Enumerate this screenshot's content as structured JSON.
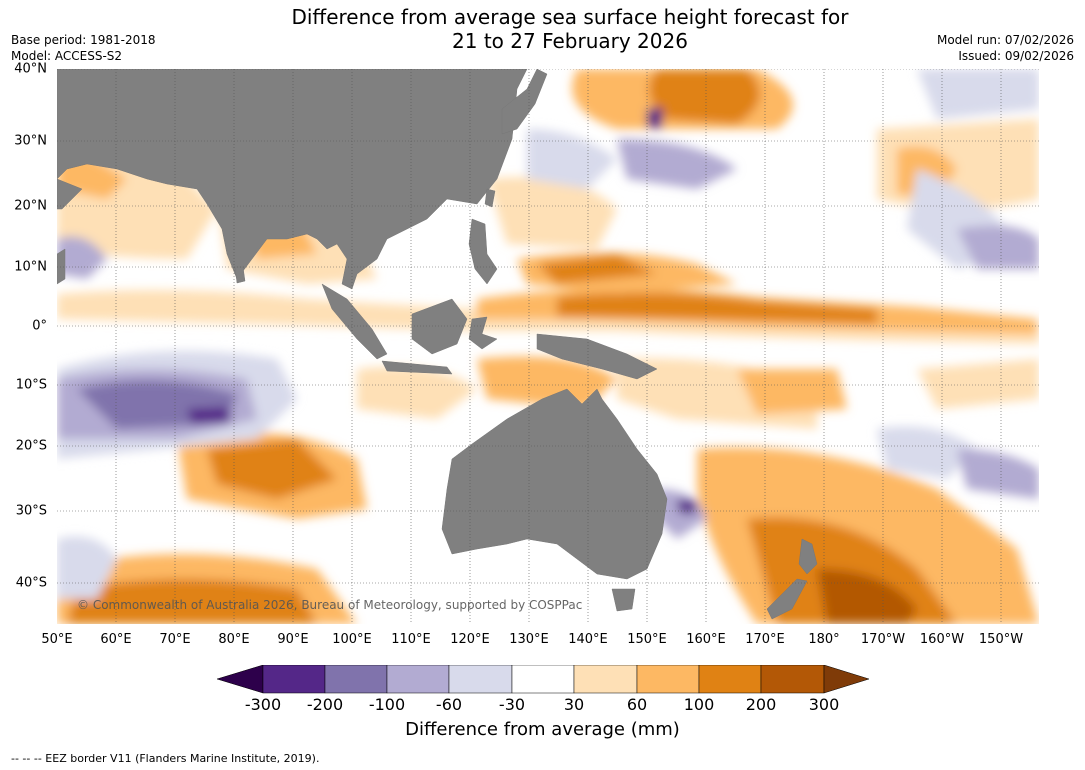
{
  "title": {
    "line1": "Difference from average sea surface height forecast for",
    "line2": "21 to 27 February 2026"
  },
  "meta": {
    "base_period": "Base period: 1981-2018",
    "model": "Model: ACCESS-S2",
    "model_run": "Model run: 07/02/2026",
    "issued": "Issued: 09/02/2026"
  },
  "map": {
    "latitude_labels": [
      "40°N",
      "30°N",
      "20°N",
      "10°N",
      "0°",
      "10°S",
      "20°S",
      "30°S",
      "40°S"
    ],
    "longitude_labels": [
      "50°E",
      "60°E",
      "70°E",
      "80°E",
      "90°E",
      "100°E",
      "110°E",
      "120°E",
      "130°E",
      "140°E",
      "150°E",
      "160°E",
      "170°E",
      "180°",
      "170°W",
      "160°W",
      "150°W"
    ],
    "copyright": "© Commonwealth of Australia 2026, Bureau of Meteorology, supported by COSPPac",
    "land_color": "#808080"
  },
  "colorbar": {
    "title": "Difference from average (mm)",
    "tick_labels": [
      "-300",
      "-200",
      "-100",
      "-60",
      "-30",
      "30",
      "60",
      "100",
      "200",
      "300"
    ],
    "colors": [
      "#2d004b",
      "#542788",
      "#8073ac",
      "#b2abd2",
      "#d8daeb",
      "#ffffff",
      "#fee0b6",
      "#fdb863",
      "#e08214",
      "#b35806",
      "#7f3b08"
    ]
  },
  "footer": "--  --  -- EEZ border V11 (Flanders Marine Institute, 2019)."
}
